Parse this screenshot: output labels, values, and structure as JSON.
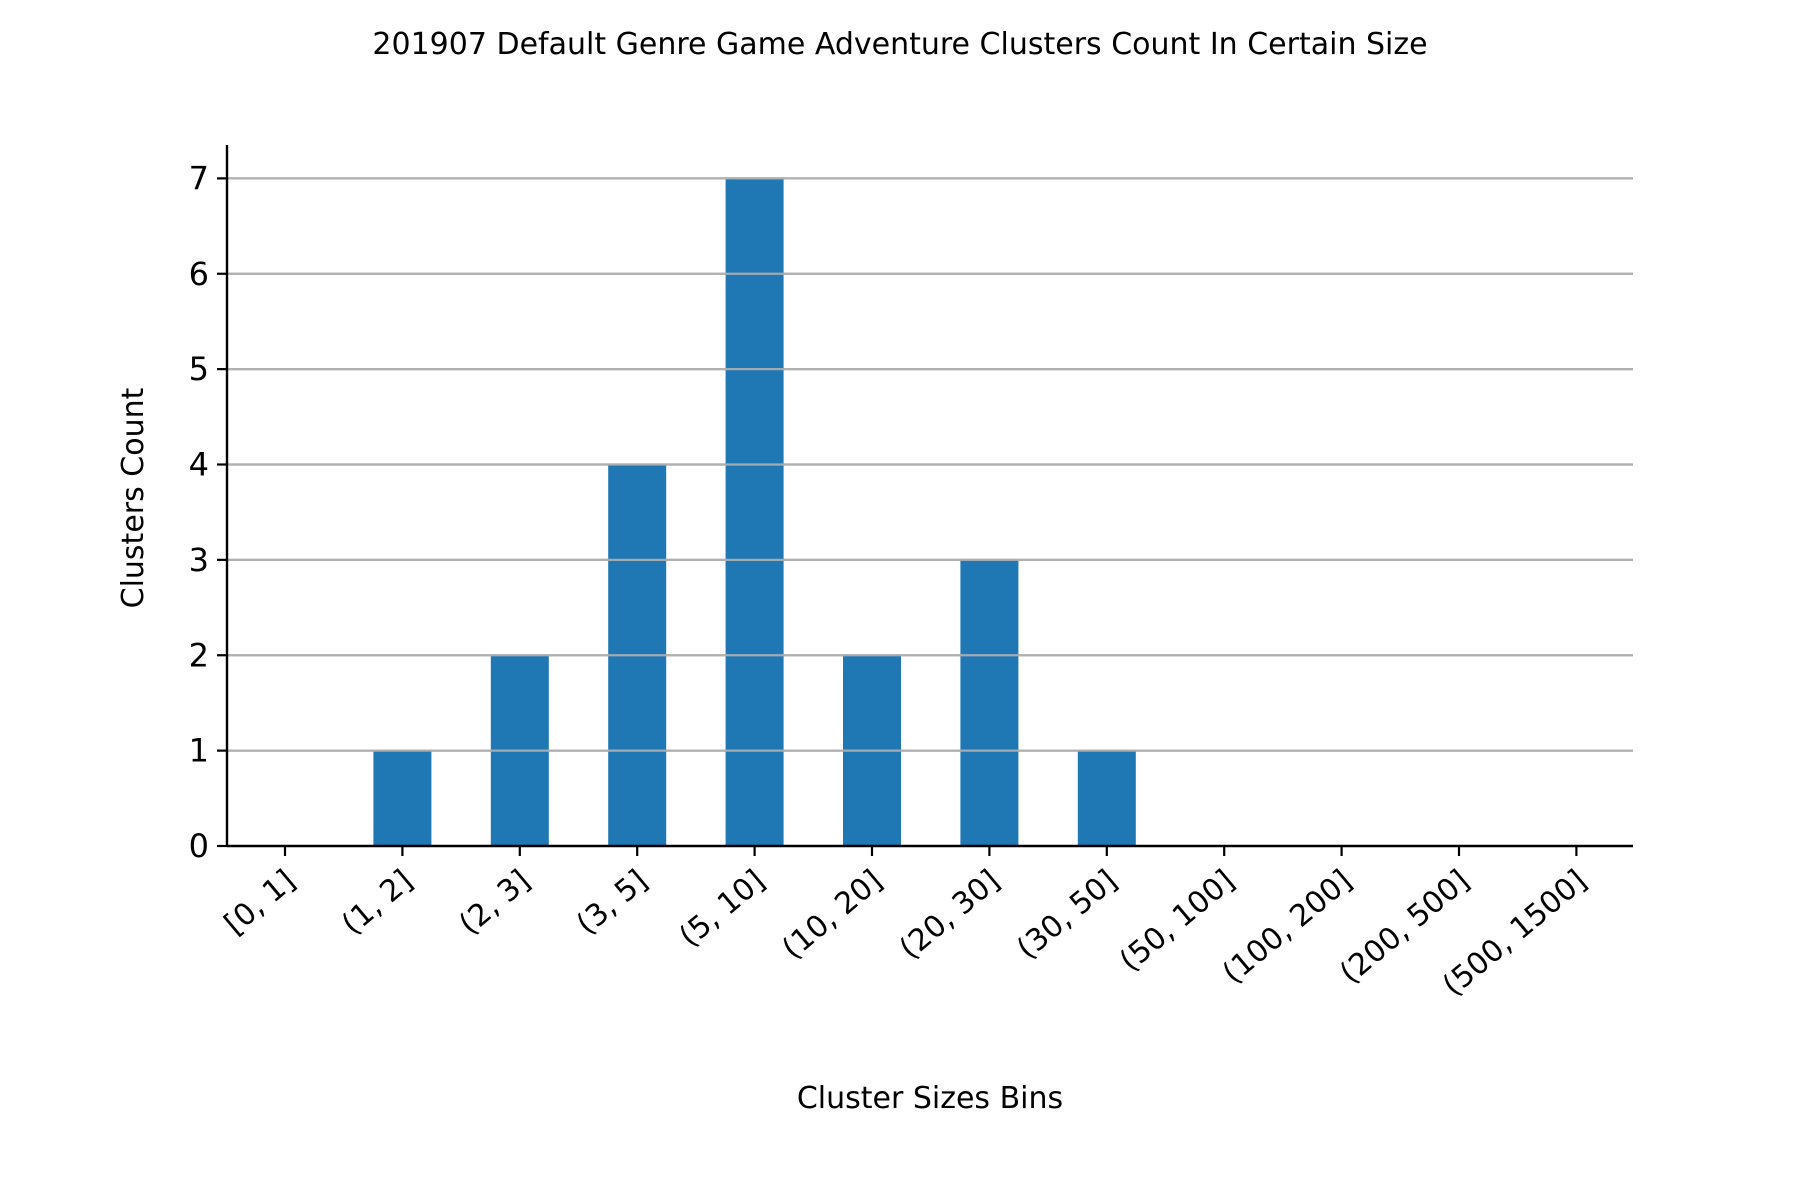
{
  "chart_data": {
    "type": "bar",
    "title": "201907 Default Genre Game Adventure Clusters Count In Certain Size",
    "xlabel": "Cluster Sizes Bins",
    "ylabel": "Clusters Count",
    "categories": [
      "[0, 1]",
      "(1, 2]",
      "(2, 3]",
      "(3, 5]",
      "(5, 10]",
      "(10, 20]",
      "(20, 30]",
      "(30, 50]",
      "(50, 100]",
      "(100, 200]",
      "(200, 500]",
      "(500, 1500]"
    ],
    "values": [
      0,
      1,
      2,
      4,
      7,
      2,
      3,
      1,
      0,
      0,
      0,
      0
    ],
    "ylim": [
      0,
      7.35
    ],
    "yticks": [
      0,
      1,
      2,
      3,
      4,
      5,
      6,
      7
    ],
    "grid": "horizontal",
    "colors": {
      "bar": "#1f77b4",
      "grid": "#b0b0b0",
      "axis": "#000000"
    }
  }
}
